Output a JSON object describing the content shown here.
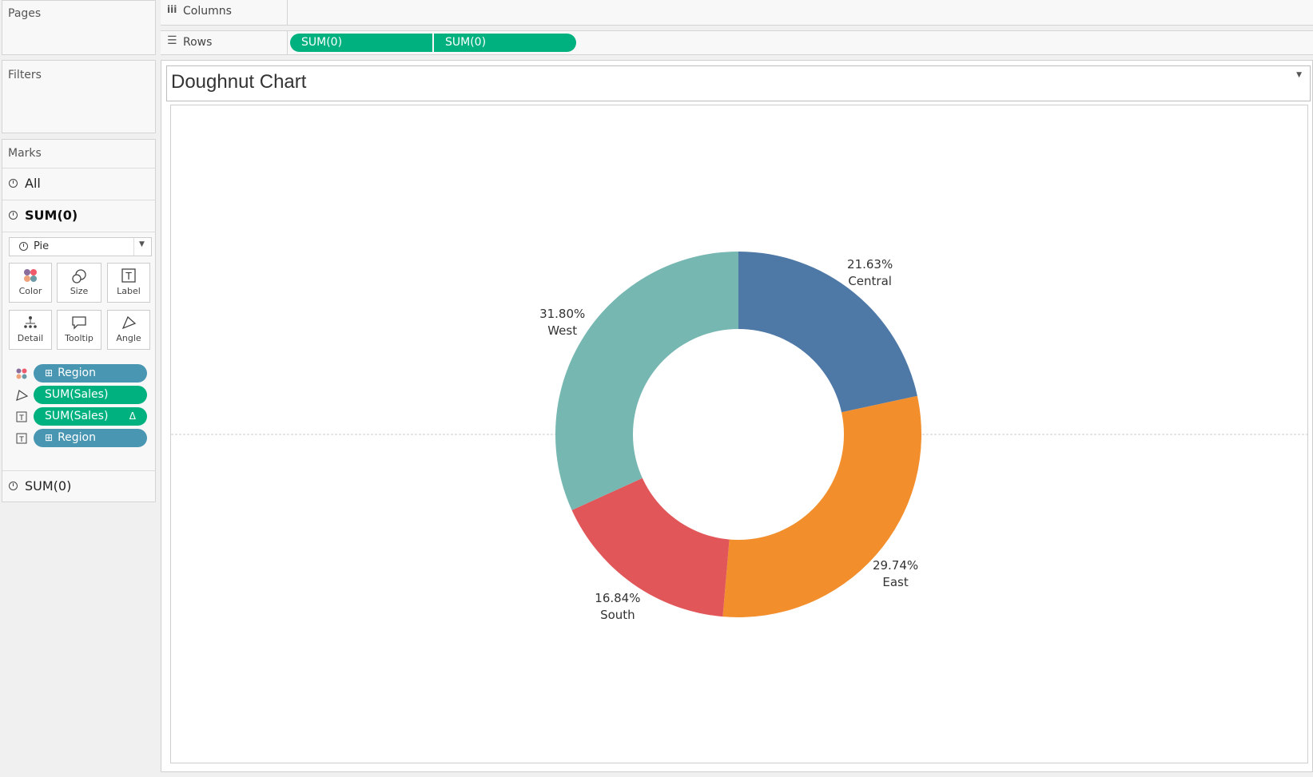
{
  "left": {
    "pages_title": "Pages",
    "filters_title": "Filters",
    "marks": {
      "title": "Marks",
      "all_label": "All",
      "active_label": "SUM(0)",
      "mark_type": "Pie",
      "cards": [
        {
          "label": "Color",
          "icon": "color-icon"
        },
        {
          "label": "Size",
          "icon": "size-icon"
        },
        {
          "label": "Label",
          "icon": "label-icon"
        },
        {
          "label": "Detail",
          "icon": "detail-icon"
        },
        {
          "label": "Tooltip",
          "icon": "tooltip-icon"
        },
        {
          "label": "Angle",
          "icon": "angle-icon"
        }
      ],
      "fields": [
        {
          "label": "Region",
          "type": "dimension",
          "encoding": "color",
          "prefix": "⊞"
        },
        {
          "label": "SUM(Sales)",
          "type": "measure",
          "encoding": "angle",
          "suffix": ""
        },
        {
          "label": "SUM(Sales)",
          "type": "measure",
          "encoding": "label",
          "suffix": "Δ"
        },
        {
          "label": "Region",
          "type": "dimension",
          "encoding": "label",
          "prefix": "⊞"
        }
      ],
      "second_label": "SUM(0)"
    }
  },
  "shelves": {
    "columns_label": "Columns",
    "rows_label": "Rows",
    "rows_pills": [
      "SUM(0)",
      "SUM(0)"
    ]
  },
  "view": {
    "title": "Doughnut Chart"
  },
  "chart_data": {
    "type": "pie",
    "title": "Doughnut Chart",
    "donut": true,
    "categories": [
      "Central",
      "East",
      "South",
      "West"
    ],
    "values": [
      21.63,
      29.74,
      16.84,
      31.8
    ],
    "labels": [
      "21.63%",
      "29.74%",
      "16.84%",
      "31.80%"
    ],
    "colors": [
      "#4e79a7",
      "#f28e2b",
      "#e15759",
      "#76b7b2"
    ],
    "start": "12 o'clock, clockwise"
  }
}
